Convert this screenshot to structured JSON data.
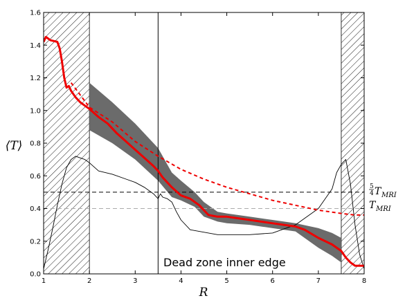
{
  "chart_data": {
    "type": "line",
    "xlabel": "R",
    "ylabel": "⟨T⟩",
    "xlim": [
      1,
      8
    ],
    "ylim": [
      0,
      1.6
    ],
    "xticks": [
      1,
      2,
      3,
      4,
      5,
      6,
      7,
      8
    ],
    "yticks": [
      0.0,
      0.2,
      0.4,
      0.6,
      0.8,
      1.0,
      1.2,
      1.4,
      1.6
    ],
    "xtick_labels": [
      "1",
      "2",
      "3",
      "4",
      "5",
      "6",
      "7",
      "8"
    ],
    "ytick_labels": [
      "0.0",
      "0.2",
      "0.4",
      "0.6",
      "0.8",
      "1.0",
      "1.2",
      "1.4",
      "1.6"
    ],
    "grid": false,
    "hatched_regions": [
      [
        1,
        2
      ],
      [
        7.5,
        8
      ]
    ],
    "dead_zone_inner_edge": 3.5,
    "annotation": "Dead zone inner edge",
    "thresholds": [
      {
        "label_prefix": "5",
        "label_den": "4",
        "label": "T",
        "label_sub": "MRI",
        "value": 0.5,
        "color": "#000000"
      },
      {
        "label": "T",
        "label_sub": "MRI",
        "value": 0.4,
        "color": "#aaaaaa"
      }
    ],
    "series": [
      {
        "style": "solid-red-thick",
        "color": "#ee0000",
        "x": [
          1.0,
          1.05,
          1.15,
          1.3,
          1.35,
          1.4,
          1.45,
          1.5,
          1.55,
          1.6,
          1.7,
          1.8,
          1.9,
          2.0,
          2.2,
          2.4,
          2.6,
          2.8,
          3.0,
          3.2,
          3.4,
          3.5,
          3.6,
          3.8,
          4.0,
          4.2,
          4.4,
          4.6,
          4.8,
          5.0,
          5.5,
          6.0,
          6.5,
          6.7,
          7.0,
          7.3,
          7.5,
          7.6,
          7.7,
          7.8,
          8.0
        ],
        "y": [
          1.42,
          1.45,
          1.43,
          1.42,
          1.38,
          1.3,
          1.2,
          1.14,
          1.15,
          1.12,
          1.08,
          1.05,
          1.03,
          1.01,
          0.96,
          0.92,
          0.86,
          0.81,
          0.76,
          0.71,
          0.66,
          0.63,
          0.59,
          0.53,
          0.48,
          0.46,
          0.42,
          0.36,
          0.35,
          0.35,
          0.33,
          0.31,
          0.29,
          0.27,
          0.22,
          0.18,
          0.14,
          0.1,
          0.07,
          0.05,
          0.05
        ]
      },
      {
        "style": "dashed-red",
        "color": "#ee0000",
        "x": [
          1.6,
          2.0,
          2.5,
          3.0,
          3.5,
          4.0,
          4.5,
          5.0,
          5.5,
          6.0,
          6.5,
          7.0,
          7.5,
          7.8,
          8.0
        ],
        "y": [
          1.17,
          1.02,
          0.93,
          0.81,
          0.72,
          0.64,
          0.58,
          0.53,
          0.49,
          0.45,
          0.42,
          0.39,
          0.37,
          0.36,
          0.36
        ]
      },
      {
        "style": "thin-black",
        "color": "#000000",
        "x": [
          1.0,
          1.1,
          1.2,
          1.3,
          1.4,
          1.5,
          1.6,
          1.7,
          1.8,
          1.9,
          2.0,
          2.2,
          2.5,
          2.8,
          3.0,
          3.2,
          3.4,
          3.5,
          3.55,
          3.6,
          3.7,
          3.8,
          3.9,
          4.0,
          4.2,
          4.4,
          4.6,
          4.8,
          5.0,
          5.5,
          6.0,
          6.5,
          7.0,
          7.3,
          7.4,
          7.5,
          7.6,
          7.7,
          7.8,
          7.9,
          8.0
        ],
        "y": [
          0.03,
          0.15,
          0.28,
          0.42,
          0.55,
          0.65,
          0.7,
          0.72,
          0.71,
          0.7,
          0.68,
          0.63,
          0.61,
          0.58,
          0.56,
          0.53,
          0.49,
          0.46,
          0.49,
          0.47,
          0.46,
          0.44,
          0.38,
          0.33,
          0.27,
          0.26,
          0.25,
          0.24,
          0.24,
          0.24,
          0.25,
          0.3,
          0.4,
          0.52,
          0.62,
          0.67,
          0.7,
          0.55,
          0.3,
          0.12,
          0.03
        ]
      }
    ],
    "band": {
      "color": "#6b6b6b",
      "x": [
        2.0,
        2.5,
        3.0,
        3.5,
        3.8,
        4.0,
        4.3,
        4.5,
        4.8,
        5.0,
        5.5,
        6.0,
        6.5,
        7.0,
        7.3,
        7.5
      ],
      "upper": [
        1.17,
        1.05,
        0.92,
        0.77,
        0.62,
        0.57,
        0.5,
        0.44,
        0.38,
        0.37,
        0.35,
        0.33,
        0.31,
        0.28,
        0.25,
        0.22
      ],
      "lower": [
        0.88,
        0.8,
        0.7,
        0.57,
        0.47,
        0.45,
        0.41,
        0.35,
        0.32,
        0.31,
        0.3,
        0.28,
        0.26,
        0.16,
        0.11,
        0.07
      ]
    }
  }
}
